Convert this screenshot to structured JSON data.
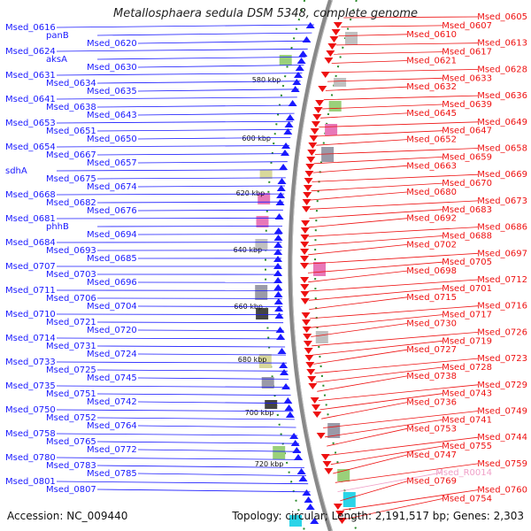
{
  "title": "Metallosphaera sedula DSM 5348, complete genome",
  "accession": "Accession: NC_009440",
  "topology": "Topology: circular; Length: 2,191,517 bp; Genes: 2,303",
  "colors": {
    "forward": "#1a1aff",
    "reverse": "#ee1111",
    "rna": "#f0a0c8",
    "backbone": "#888888",
    "ticks": "#2a8a2a"
  },
  "ticks": [
    "580 kbp",
    "600 kbp",
    "620 kbp",
    "640 kbp",
    "660 kbp",
    "680 kbp",
    "700 kbp",
    "720 kbp"
  ],
  "left_labels": [
    "Msed_0616",
    "panB",
    "Msed_0620",
    "Msed_0624",
    "aksA",
    "Msed_0630",
    "Msed_0631",
    "Msed_0634",
    "Msed_0635",
    "Msed_0641",
    "Msed_0638",
    "Msed_0643",
    "Msed_0653",
    "Msed_0651",
    "Msed_0650",
    "Msed_0654",
    "Msed_0667",
    "Msed_0657",
    "sdhA",
    "Msed_0675",
    "Msed_0674",
    "Msed_0668",
    "Msed_0682",
    "Msed_0676",
    "Msed_0681",
    "phhB",
    "Msed_0694",
    "Msed_0684",
    "Msed_0693",
    "Msed_0685",
    "Msed_0707",
    "Msed_0703",
    "Msed_0696",
    "Msed_0711",
    "Msed_0706",
    "Msed_0704",
    "Msed_0710",
    "Msed_0721",
    "Msed_0720",
    "Msed_0714",
    "Msed_0731",
    "Msed_0724",
    "Msed_0733",
    "Msed_0725",
    "Msed_0745",
    "Msed_0735",
    "Msed_0751",
    "Msed_0742",
    "Msed_0750",
    "Msed_0752",
    "Msed_0764",
    "Msed_0758",
    "Msed_0765",
    "Msed_0772",
    "Msed_0780",
    "Msed_0783",
    "Msed_0785",
    "Msed_0801",
    "Msed_0807"
  ],
  "right_labels": [
    "Msed_0605",
    "Msed_0607",
    "Msed_0610",
    "Msed_0613",
    "Msed_0617",
    "Msed_0621",
    "Msed_0628",
    "Msed_0633",
    "Msed_0632",
    "Msed_0636",
    "Msed_0639",
    "Msed_0645",
    "Msed_0649",
    "Msed_0647",
    "Msed_0652",
    "Msed_0658",
    "Msed_0659",
    "Msed_0663",
    "Msed_0669",
    "Msed_0670",
    "Msed_0680",
    "Msed_0673",
    "Msed_0683",
    "Msed_0692",
    "Msed_0686",
    "Msed_0688",
    "Msed_0702",
    "Msed_0697",
    "Msed_0705",
    "Msed_0698",
    "Msed_0712",
    "Msed_0701",
    "Msed_0715",
    "Msed_0716",
    "Msed_0717",
    "Msed_0730",
    "Msed_0726",
    "Msed_0719",
    "Msed_0727",
    "Msed_0723",
    "Msed_0728",
    "Msed_0738",
    "Msed_0729",
    "Msed_0743",
    "Msed_0736",
    "Msed_0749",
    "Msed_0741",
    "Msed_0753",
    "Msed_0744",
    "Msed_0755",
    "Msed_0747",
    "Msed_0759",
    "Msed_R0014",
    "Msed_0769",
    "Msed_0760",
    "Msed_0754"
  ]
}
